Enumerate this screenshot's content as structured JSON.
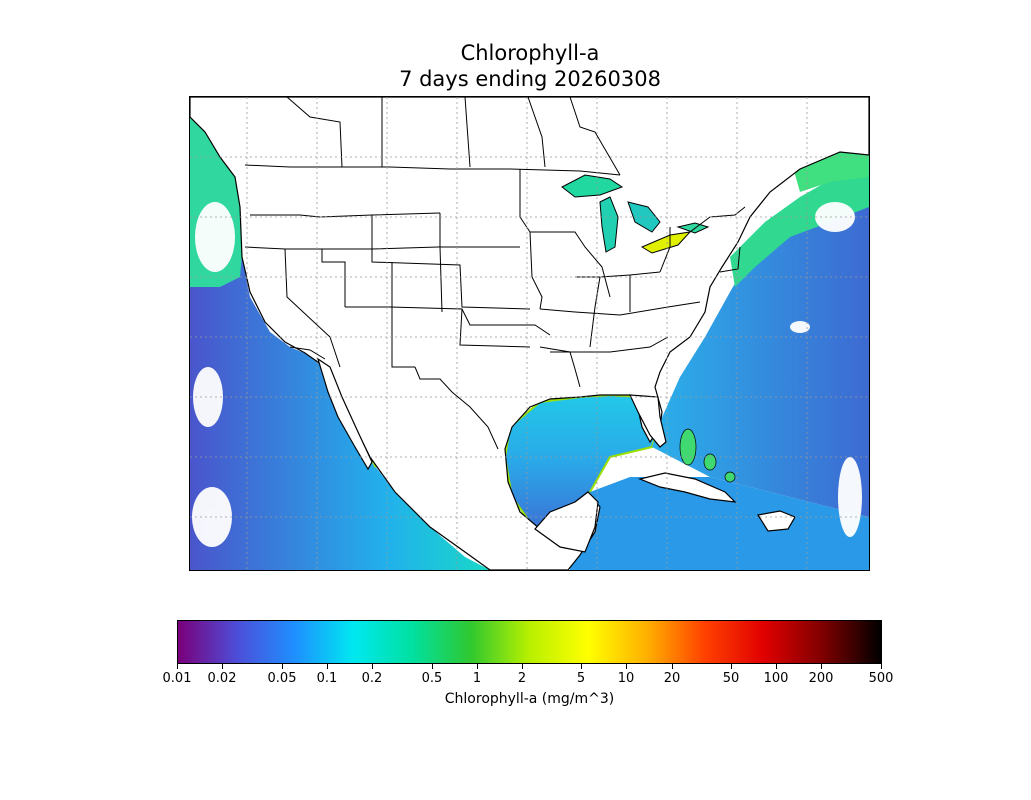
{
  "title": {
    "line1": "Chlorophyll-a",
    "line2": "7 days ending 20260308"
  },
  "map": {
    "region": "contiguous-united-states-and-surrounding-oceans",
    "variable": "chlorophyll-a",
    "land_color": "#ffffff",
    "boundary_color": "#000000",
    "gridlines": "dotted",
    "missing_data_color": "#ffffff"
  },
  "colorbar": {
    "label": "Chlorophyll-a (mg/m^3)",
    "scale": "log",
    "range": [
      0.01,
      500
    ],
    "ticks": [
      "0.01",
      "0.02",
      "0.05",
      "0.1",
      "0.2",
      "0.5",
      "1",
      "2",
      "5",
      "10",
      "20",
      "50",
      "100",
      "200",
      "500"
    ],
    "tick_values": [
      0.01,
      0.02,
      0.05,
      0.1,
      0.2,
      0.5,
      1,
      2,
      5,
      10,
      20,
      50,
      100,
      200,
      500
    ],
    "colors": [
      "#7a007a",
      "#4d4dd8",
      "#1e90ff",
      "#00e8f0",
      "#00e0a0",
      "#30c830",
      "#b8f000",
      "#ffff00",
      "#ffb000",
      "#ff4000",
      "#e00000",
      "#800000",
      "#000000"
    ]
  }
}
